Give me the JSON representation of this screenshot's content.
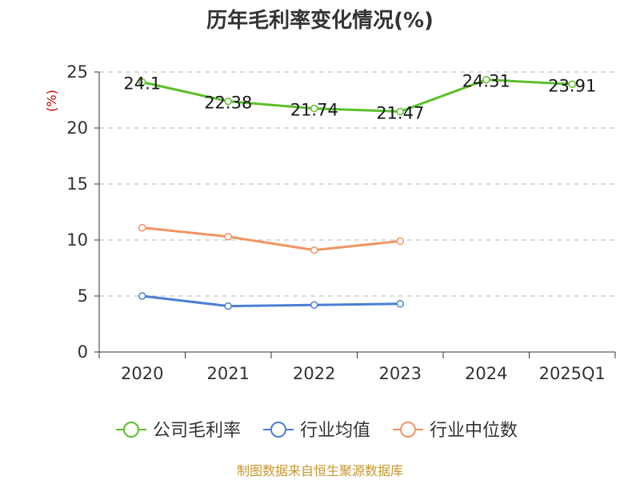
{
  "chart_data": {
    "type": "line",
    "title": "历年毛利率变化情况(%)",
    "ylabel": "(%)",
    "categories": [
      "2020",
      "2021",
      "2022",
      "2023",
      "2024",
      "2025Q1"
    ],
    "ylim": [
      0,
      25
    ],
    "yticks": [
      "0",
      "5",
      "10",
      "15",
      "20",
      "25"
    ],
    "grid": true,
    "legend_position": "bottom",
    "series": [
      {
        "name": "公司毛利率",
        "color": "#5cbf2a",
        "values": [
          24.1,
          22.38,
          21.74,
          21.47,
          24.31,
          23.91
        ],
        "labels": [
          "24.1",
          "22.38",
          "21.74",
          "21.47",
          "24.31",
          "23.91"
        ]
      },
      {
        "name": "行业均值",
        "color": "#4a7fd4",
        "values": [
          5.0,
          4.1,
          4.2,
          4.3,
          null,
          null
        ]
      },
      {
        "name": "行业中位数",
        "color": "#f29461",
        "values": [
          11.1,
          10.3,
          9.1,
          9.9,
          null,
          null
        ]
      }
    ]
  },
  "source": "制图数据来自恒生聚源数据库"
}
